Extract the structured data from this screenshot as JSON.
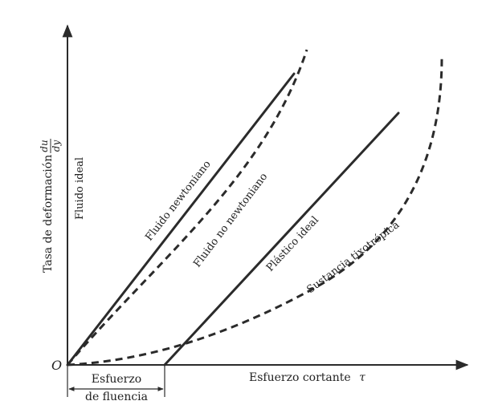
{
  "axes": {
    "origin_label": "O",
    "y_label": "Tasa de deformación",
    "y_symbol_num": "du",
    "y_symbol_den": "dy",
    "x_label": "Esfuerzo cortante",
    "x_symbol": "τ"
  },
  "yield": {
    "line1": "Esfuerzo",
    "line2": "de fluencia"
  },
  "curves": {
    "fluido_ideal": "Fluido ideal",
    "newtoniano": "Fluido newtoniano",
    "no_newtoniano": "Fluido no newtoniano",
    "plastico": "Plástico ideal",
    "tixotropica": "Sustancia tixotrópica"
  }
}
